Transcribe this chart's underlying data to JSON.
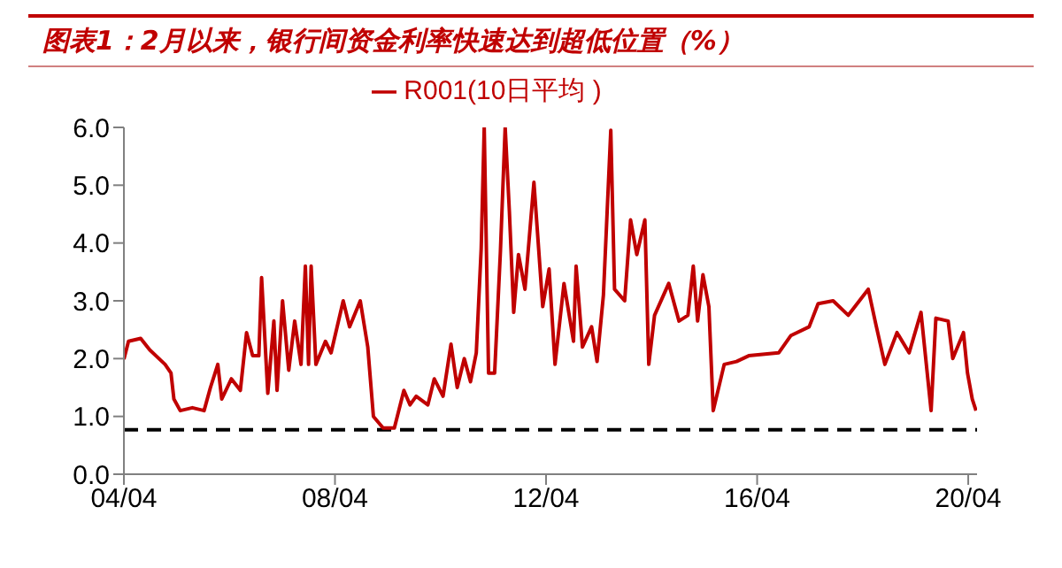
{
  "chart_data": {
    "type": "line",
    "title": "图表1：2月以来，银行间资金利率快速达到超低位置（%）",
    "x": [
      "2004-04-01",
      "2004-05-03",
      "2004-07-26",
      "2004-09-27",
      "2005-01-11",
      "2005-02-21",
      "2005-03-13",
      "2005-04-26",
      "2005-07-19",
      "2005-10-08",
      "2005-11-21",
      "2006-01-11",
      "2006-02-07",
      "2006-04-15",
      "2006-06-16",
      "2006-07-29",
      "2006-09-09",
      "2006-10-22",
      "2006-11-10",
      "2006-12-23",
      "2007-02-03",
      "2007-02-25",
      "2007-04-04",
      "2007-05-17",
      "2007-06-27",
      "2007-08-10",
      "2007-09-09",
      "2007-10-01",
      "2007-10-19",
      "2007-11-21",
      "2008-01-26",
      "2008-03-05",
      "2008-05-28",
      "2008-07-11",
      "2008-09-23",
      "2008-11-14",
      "2008-12-23",
      "2009-02-28",
      "2009-05-17",
      "2009-07-22",
      "2009-09-02",
      "2009-10-15",
      "2010-01-04",
      "2010-02-17",
      "2010-04-19",
      "2010-06-13",
      "2010-07-26",
      "2010-09-13",
      "2010-10-26",
      "2010-12-05",
      "2011-01-08",
      "2011-01-29",
      "2011-02-28",
      "2011-04-11",
      "2011-05-21",
      "2011-06-23",
      "2011-07-22",
      "2011-08-21",
      "2011-09-23",
      "2011-11-07",
      "2012-01-08",
      "2012-03-09",
      "2012-04-22",
      "2012-06-02",
      "2012-08-03",
      "2012-10-08",
      "2012-10-26",
      "2012-12-09",
      "2013-02-10",
      "2013-03-20",
      "2013-05-03",
      "2013-06-23",
      "2013-07-19",
      "2013-09-27",
      "2013-11-07",
      "2013-12-20",
      "2014-02-14",
      "2014-03-13",
      "2014-04-22",
      "2014-07-29",
      "2014-10-08",
      "2014-12-09",
      "2015-01-15",
      "2015-02-14",
      "2015-03-23",
      "2015-05-03",
      "2015-06-02",
      "2015-08-17",
      "2015-11-10",
      "2016-02-03",
      "2016-08-28",
      "2016-11-21",
      "2017-03-27",
      "2017-05-28",
      "2017-09-09",
      "2017-12-23",
      "2018-05-10",
      "2018-07-01",
      "2018-09-02",
      "2018-11-25",
      "2019-02-17",
      "2019-05-10",
      "2019-07-19",
      "2019-08-21",
      "2019-11-14",
      "2019-12-16",
      "2020-02-28",
      "2020-03-27",
      "2020-04-29",
      "2020-05-25"
    ],
    "series": [
      {
        "name": "R001(10日平均 )",
        "color": "#c00000",
        "values": [
          1.99,
          2.3,
          2.35,
          2.15,
          1.9,
          1.75,
          1.3,
          1.1,
          1.15,
          1.1,
          1.5,
          1.9,
          1.3,
          1.65,
          1.45,
          2.45,
          2.05,
          2.05,
          3.4,
          1.4,
          2.65,
          1.45,
          3.0,
          1.8,
          2.65,
          1.9,
          3.6,
          1.9,
          3.6,
          1.9,
          2.3,
          2.1,
          3.0,
          2.55,
          3.0,
          2.2,
          1.0,
          0.8,
          0.8,
          1.45,
          1.2,
          1.35,
          1.2,
          1.65,
          1.35,
          2.25,
          1.5,
          2.0,
          1.6,
          2.1,
          3.9,
          6.0,
          1.75,
          1.75,
          3.85,
          6.0,
          4.55,
          2.8,
          3.8,
          3.2,
          5.05,
          2.9,
          3.55,
          1.9,
          3.3,
          2.3,
          3.6,
          2.2,
          2.55,
          1.95,
          3.1,
          5.95,
          3.2,
          3.0,
          4.4,
          3.8,
          4.4,
          1.9,
          2.75,
          3.3,
          2.65,
          2.75,
          3.6,
          2.65,
          3.45,
          2.9,
          1.1,
          1.9,
          1.95,
          2.05,
          2.1,
          2.4,
          2.55,
          2.95,
          3.0,
          2.75,
          3.2,
          2.6,
          1.9,
          2.45,
          2.1,
          2.8,
          1.1,
          2.7,
          2.65,
          2.0,
          2.45,
          1.75,
          1.3,
          1.1
        ]
      }
    ],
    "ref_lines": [
      {
        "axis": "y",
        "value": 0.77,
        "color": "#000000",
        "line_style": "dashed"
      }
    ],
    "xlim": [
      "2004-04-01",
      "2020-06-01"
    ],
    "xticks": [
      {
        "value": "2004-04-01",
        "label": "04/04"
      },
      {
        "value": "2008-04-01",
        "label": "08/04"
      },
      {
        "value": "2012-04-01",
        "label": "12/04"
      },
      {
        "value": "2016-04-01",
        "label": "16/04"
      },
      {
        "value": "2020-04-01",
        "label": "20/04"
      }
    ],
    "ylim": [
      0,
      6
    ],
    "yticks": [
      {
        "value": 0,
        "label": "0.0"
      },
      {
        "value": 1,
        "label": "1.0"
      },
      {
        "value": 2,
        "label": "2.0"
      },
      {
        "value": 3,
        "label": "3.0"
      },
      {
        "value": 4,
        "label": "4.0"
      },
      {
        "value": 5,
        "label": "5.0"
      },
      {
        "value": 6,
        "label": "6.0"
      }
    ],
    "grid": false,
    "legend": "top",
    "marker": "none",
    "line_style": "solid"
  }
}
